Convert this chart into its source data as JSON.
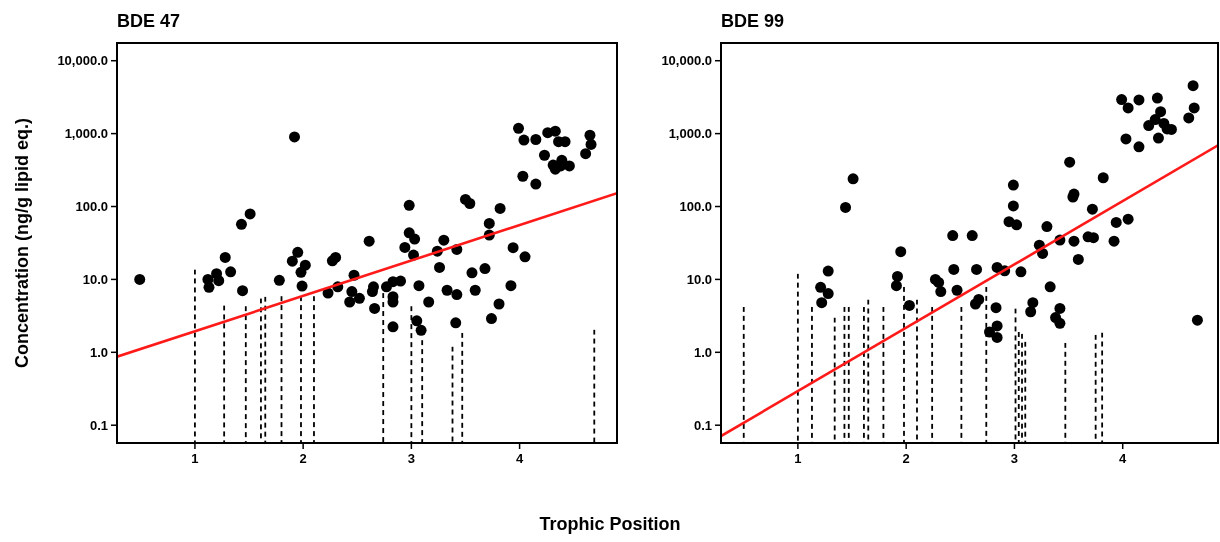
{
  "chart_data": [
    {
      "type": "scatter",
      "title": "BDE 47",
      "xlabel": "Trophic Position",
      "ylabel": "Concentration (ng/g lipid eq.)",
      "log": "y",
      "xlim": [
        0.28,
        4.9
      ],
      "xticks": [
        1,
        2,
        3,
        4
      ],
      "ylim": [
        0.057,
        17500
      ],
      "yticks": [
        {
          "value": 0.1,
          "label": "0.1"
        },
        {
          "value": 1,
          "label": "1.0"
        },
        {
          "value": 10,
          "label": "10.0"
        },
        {
          "value": 100,
          "label": "100.0"
        },
        {
          "value": 1000,
          "label": "1,000.0"
        },
        {
          "value": 10000,
          "label": "10,000.0"
        }
      ],
      "series": [
        {
          "type": "bar",
          "line_style": "dashed",
          "color": "#000000",
          "x": [
            1.0,
            1.27,
            1.47,
            1.61,
            1.65,
            1.8,
            1.98,
            2.1,
            2.74,
            3.0,
            3.1,
            3.38,
            3.47,
            4.69
          ],
          "values": [
            13.7,
            4.4,
            4.3,
            5.5,
            5.8,
            5.9,
            5.9,
            5.9,
            6.5,
            4.3,
            1.47,
            1.2,
            1.85,
            2.05
          ]
        },
        {
          "type": "scatter",
          "marker": "circle",
          "color": "#000000",
          "x": [
            0.49,
            1.12,
            1.13,
            1.2,
            1.22,
            1.28,
            1.33,
            1.43,
            1.51,
            1.44,
            1.78,
            1.92,
            1.9,
            1.95,
            1.98,
            2.02,
            1.99,
            2.23,
            2.27,
            2.3,
            2.32,
            2.43,
            2.45,
            2.47,
            2.52,
            2.61,
            2.65,
            2.64,
            2.66,
            2.77,
            2.83,
            2.9,
            2.83,
            2.83,
            2.83,
            2.98,
            2.98,
            3.03,
            2.94,
            3.02,
            3.07,
            3.05,
            3.09,
            3.16,
            3.24,
            3.3,
            3.26,
            3.33,
            3.42,
            3.42,
            3.41,
            3.5,
            3.54,
            3.56,
            3.59,
            3.68,
            3.72,
            3.72,
            3.82,
            3.81,
            3.74,
            3.92,
            3.94,
            4.05,
            3.99,
            4.04,
            4.15,
            4.03,
            4.15,
            4.26,
            4.33,
            4.36,
            4.42,
            4.23,
            4.31,
            4.39,
            4.33,
            4.46,
            4.38,
            4.61,
            4.65,
            4.66
          ],
          "values": [
            10,
            10,
            7.8,
            12,
            9.6,
            20,
            12.7,
            57,
            79,
            7,
            9.7,
            900,
            17.8,
            23.5,
            12.5,
            15.7,
            8.1,
            6.5,
            18,
            20,
            7.9,
            4.9,
            6.8,
            11.4,
            5.5,
            33.5,
            7.9,
            6.8,
            4,
            7.9,
            9.3,
            9.5,
            5.8,
            4.9,
            2.24,
            104,
            43.6,
            35.7,
            27.5,
            21.6,
            8.2,
            2.7,
            2,
            4.9,
            24.4,
            34.5,
            14.6,
            7.1,
            25.8,
            6.2,
            2.54,
            125,
            110,
            12.3,
            7.1,
            14.1,
            58.5,
            40.6,
            94,
            4.6,
            2.9,
            8.2,
            27.2,
            20.4,
            1180,
            815,
            830,
            260,
            203,
            1030,
            1080,
            775,
            775,
            505,
            370,
            430,
            325,
            360,
            360,
            530,
            950,
            710
          ]
        },
        {
          "type": "line",
          "color": "#ff1a1a",
          "x": [
            0.28,
            4.9
          ],
          "values": [
            0.87,
            152
          ]
        }
      ]
    },
    {
      "type": "scatter",
      "title": "BDE 99",
      "log": "y",
      "xlim": [
        0.29,
        4.88
      ],
      "xticks": [
        1,
        2,
        3,
        4
      ],
      "ylim": [
        0.057,
        17500
      ],
      "yticks": [
        {
          "value": 0.1,
          "label": "0.1"
        },
        {
          "value": 1,
          "label": "1.0"
        },
        {
          "value": 10,
          "label": "10.0"
        },
        {
          "value": 100,
          "label": "100.0"
        },
        {
          "value": 1000,
          "label": "1,000.0"
        },
        {
          "value": 10000,
          "label": "10,000.0"
        }
      ],
      "series": [
        {
          "type": "bar",
          "line_style": "dashed",
          "color": "#000000",
          "x": [
            0.5,
            1.0,
            1.13,
            1.34,
            1.43,
            1.47,
            1.61,
            1.65,
            1.79,
            1.98,
            2.1,
            2.24,
            2.51,
            2.74,
            3.01,
            3.04,
            3.07,
            3.1,
            3.47,
            3.75,
            3.81
          ],
          "values": [
            4.2,
            12,
            4.2,
            3.0,
            4.2,
            4.2,
            4.2,
            5.3,
            4.2,
            7.9,
            5.3,
            4.2,
            4.2,
            7.9,
            4.0,
            1.9,
            1.8,
            1.4,
            1.35,
            1.74,
            1.87
          ]
        },
        {
          "type": "scatter",
          "marker": "circle",
          "color": "#000000",
          "x": [
            1.21,
            1.22,
            1.28,
            1.28,
            1.44,
            1.51,
            1.95,
            1.92,
            1.91,
            2.03,
            2.27,
            2.3,
            2.32,
            2.43,
            2.44,
            2.47,
            2.61,
            2.65,
            2.64,
            2.67,
            2.84,
            2.91,
            2.83,
            2.77,
            2.84,
            2.84,
            2.99,
            2.99,
            2.95,
            3.02,
            3.06,
            3.17,
            3.15,
            3.23,
            3.26,
            3.3,
            3.42,
            3.33,
            3.42,
            3.38,
            3.42,
            3.51,
            3.55,
            3.54,
            3.55,
            3.59,
            3.72,
            3.68,
            3.73,
            3.82,
            3.94,
            3.92,
            4.05,
            3.99,
            4.05,
            4.15,
            4.03,
            4.15,
            4.32,
            4.35,
            4.3,
            4.24,
            4.38,
            4.41,
            4.45,
            4.33,
            4.61,
            4.65,
            4.66,
            4.69
          ],
          "values": [
            7.8,
            4.8,
            13,
            6.4,
            97,
            240,
            24,
            11,
            8.2,
            4.4,
            10,
            9.1,
            6.8,
            40,
            13.7,
            7.1,
            40,
            13.7,
            4.6,
            5.3,
            14.6,
            13.1,
            4.1,
            1.9,
            2.3,
            1.6,
            197,
            102,
            62,
            56,
            12.7,
            4.8,
            3.6,
            29.5,
            22.7,
            53,
            34.6,
            7.9,
            4,
            3,
            2.5,
            405,
            148,
            135,
            33.5,
            18.8,
            92,
            38.4,
            37.3,
            248,
            60.5,
            33.5,
            67,
            2930,
            2250,
            2900,
            845,
            660,
            3070,
            2000,
            1560,
            1290,
            1380,
            1160,
            1140,
            870,
            1640,
            4540,
            2250,
            2.76
          ]
        },
        {
          "type": "line",
          "color": "#ff1a1a",
          "x": [
            0.29,
            4.88
          ],
          "values": [
            0.071,
            690
          ]
        }
      ]
    }
  ]
}
